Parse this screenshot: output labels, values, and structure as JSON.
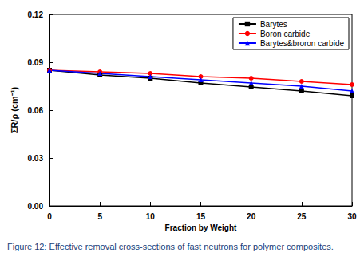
{
  "chart_data": {
    "type": "line",
    "title": "Figure 12: Effective removal cross-sections of fast neutrons for polymer composites.",
    "x_label": "Fraction by Weight",
    "y_label": "ΣR/ρ (cm⁻¹)",
    "x": [
      0,
      5,
      10,
      15,
      20,
      25,
      30
    ],
    "series": [
      {
        "name": "Barytes",
        "color": "#000000",
        "marker": "rect",
        "values": [
          0.085,
          0.082,
          0.08,
          0.077,
          0.0745,
          0.072,
          0.069
        ]
      },
      {
        "name": "Boron carbide",
        "color": "#ff0000",
        "marker": "circle",
        "values": [
          0.085,
          0.084,
          0.083,
          0.081,
          0.08,
          0.078,
          0.076
        ]
      },
      {
        "name": "Barytes&broron carbide",
        "color": "#0000ff",
        "marker": "triangle",
        "values": [
          0.085,
          0.083,
          0.081,
          0.079,
          0.077,
          0.075,
          0.072
        ]
      }
    ],
    "xlim": [
      0,
      30
    ],
    "xticks": [
      0,
      5,
      10,
      15,
      20,
      25,
      30
    ],
    "ylim": [
      0,
      0.12
    ],
    "yticks": [
      {
        "value": 0,
        "label": "0.00"
      },
      0.03,
      0.06,
      0.09,
      0.12
    ],
    "grid": false,
    "legend": "top-right"
  }
}
